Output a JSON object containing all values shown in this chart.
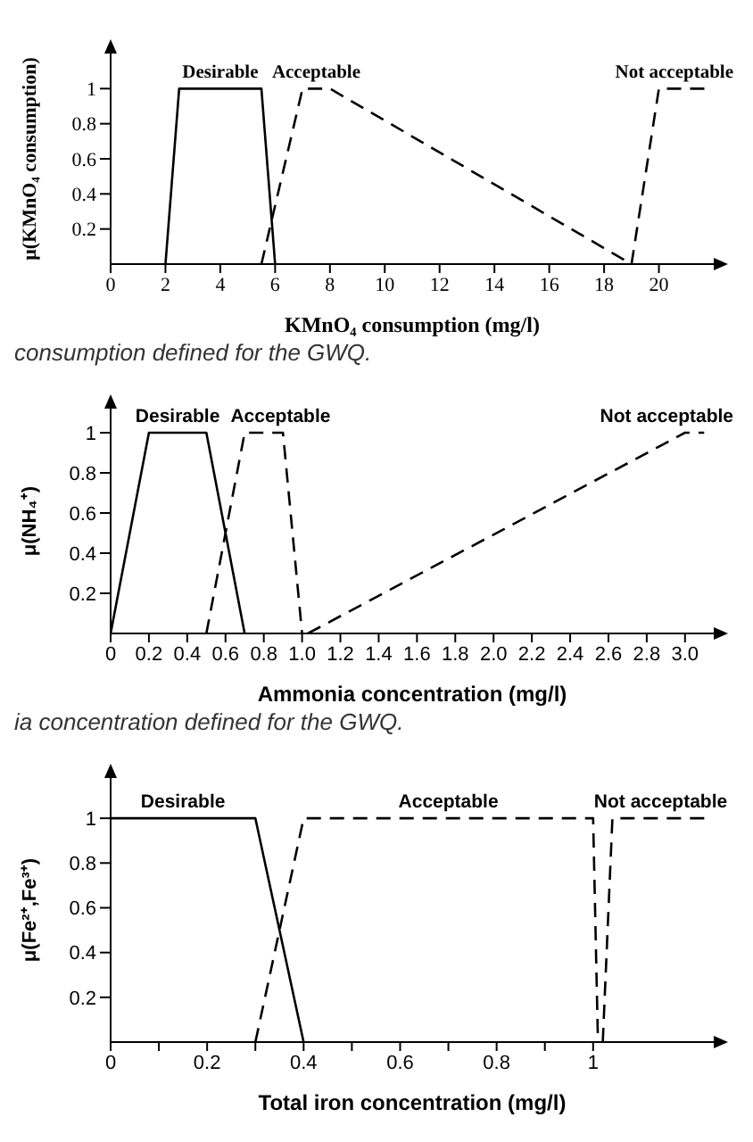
{
  "chart_data": [
    {
      "type": "line",
      "xlabel": "KMnO₄ consumption (mg/l)",
      "ylabel": "μ(KMnO₄ consumption)",
      "xlim": [
        0,
        22
      ],
      "ylim": [
        0,
        1.2
      ],
      "xticks": [
        0,
        2,
        4,
        6,
        8,
        10,
        12,
        14,
        16,
        18,
        20
      ],
      "yticks": [
        0.2,
        0.4,
        0.6,
        0.8,
        1
      ],
      "grid": false,
      "legend": false,
      "marker": "none",
      "annotations": [
        "consumption defined for the GWQ."
      ],
      "series": [
        {
          "name": "Desirable",
          "color": "#000000",
          "line_style": "solid",
          "x": [
            2,
            2.5,
            5.5,
            6
          ],
          "values": [
            0,
            1,
            1,
            0
          ]
        },
        {
          "name": "Acceptable",
          "color": "#000000",
          "line_style": "dashed",
          "x": [
            5.5,
            7,
            8,
            19
          ],
          "values": [
            0,
            1,
            1,
            0
          ]
        },
        {
          "name": "Not acceptable",
          "color": "#000000",
          "line_style": "dashed",
          "x": [
            19,
            20,
            21.8
          ],
          "values": [
            0,
            1,
            1
          ]
        }
      ]
    },
    {
      "type": "line",
      "xlabel": "Ammonia concentration (mg/l)",
      "ylabel": "μ(NH₄⁺)",
      "xlim": [
        0,
        3.15
      ],
      "ylim": [
        0,
        1.12
      ],
      "xticks": [
        0,
        0.2,
        0.4,
        0.6,
        0.8,
        {
          "value": 1,
          "label": "1.0"
        },
        1.2,
        1.4,
        1.6,
        1.8,
        {
          "value": 2,
          "label": "2.0"
        },
        2.2,
        2.4,
        2.6,
        2.8,
        {
          "value": 3,
          "label": "3.0"
        }
      ],
      "yticks": [
        0.2,
        0.4,
        0.6,
        0.8,
        1
      ],
      "grid": false,
      "legend": false,
      "marker": "none",
      "annotations": [
        "ia concentration defined for the GWQ."
      ],
      "series": [
        {
          "name": "Desirable",
          "color": "#000000",
          "line_style": "solid",
          "x": [
            0,
            0.2,
            0.5,
            0.7
          ],
          "values": [
            0,
            1,
            1,
            0
          ]
        },
        {
          "name": "Acceptable",
          "color": "#000000",
          "line_style": "dashed",
          "x": [
            0.5,
            0.7,
            0.9,
            1.0
          ],
          "values": [
            0,
            1,
            1,
            0
          ]
        },
        {
          "name": "Not acceptable",
          "color": "#000000",
          "line_style": "dashed",
          "x": [
            1.03,
            3.0,
            3.1
          ],
          "values": [
            0,
            1,
            1
          ]
        }
      ]
    },
    {
      "type": "line",
      "xlabel": "Total iron concentration (mg/l)",
      "ylabel": "μ(Fe²⁺,Fe³⁺)",
      "xlim": [
        0,
        1.25
      ],
      "ylim": [
        0,
        1.18
      ],
      "xticks": [
        0,
        {
          "value": 0.1,
          "label": null
        },
        0.2,
        {
          "value": 0.3,
          "label": null
        },
        0.4,
        {
          "value": 0.5,
          "label": null
        },
        0.6,
        {
          "value": 0.7,
          "label": null
        },
        0.8,
        {
          "value": 0.9,
          "label": null
        },
        1
      ],
      "yticks": [
        0.2,
        0.4,
        0.6,
        0.8,
        1
      ],
      "grid": false,
      "legend": false,
      "marker": "none",
      "series": [
        {
          "name": "Desirable",
          "color": "#000000",
          "line_style": "solid",
          "x": [
            0,
            0.3,
            0.4
          ],
          "values": [
            1,
            1,
            0
          ]
        },
        {
          "name": "Acceptable",
          "color": "#000000",
          "line_style": "dashed",
          "x": [
            0.3,
            0.4,
            1.0,
            1.01
          ],
          "values": [
            0,
            1,
            1,
            0
          ]
        },
        {
          "name": "Not acceptable",
          "color": "#000000",
          "line_style": "dashed",
          "x": [
            1.02,
            1.04,
            1.24
          ],
          "values": [
            0,
            1,
            1
          ]
        }
      ]
    }
  ]
}
